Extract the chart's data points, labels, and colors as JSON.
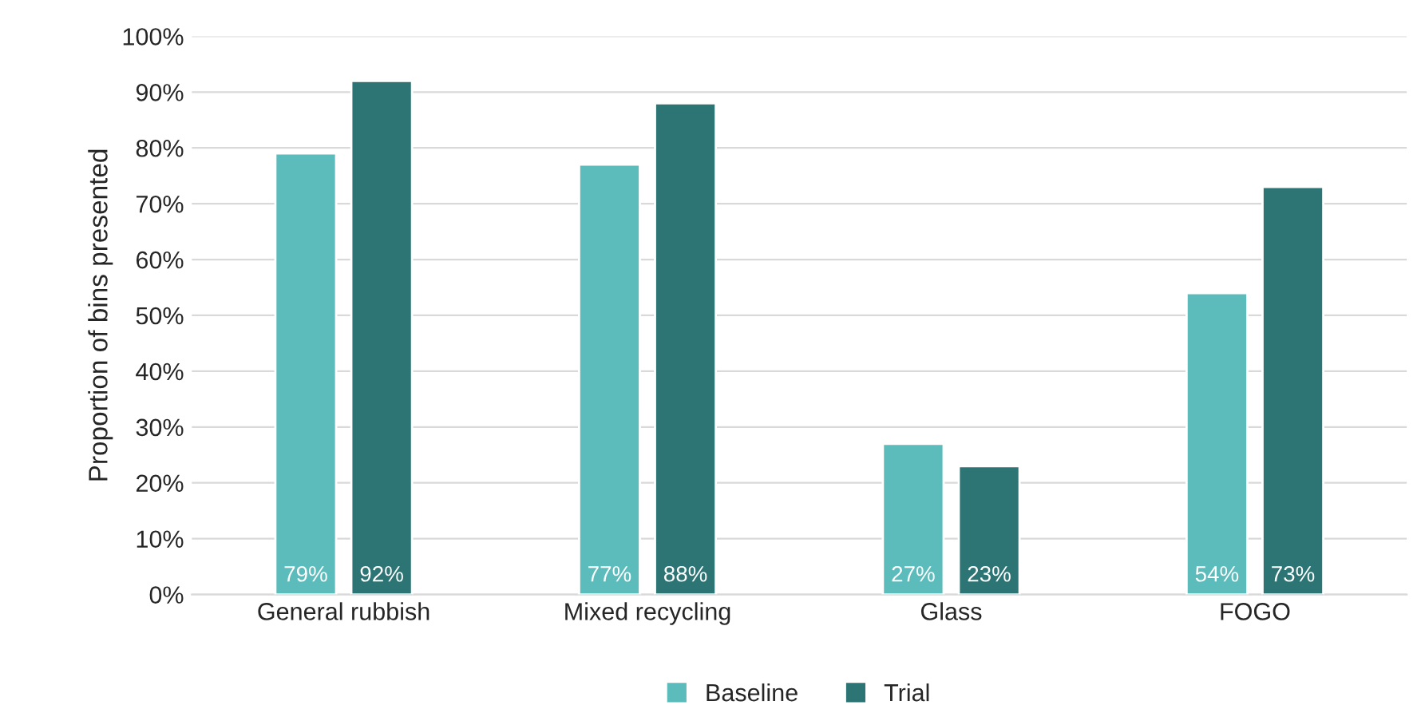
{
  "chart_data": {
    "type": "bar",
    "ylabel": "Proportion of bins presented",
    "categories": [
      "General rubbish",
      "Mixed recycling",
      "Glass",
      "FOGO"
    ],
    "series": [
      {
        "name": "Baseline",
        "color": "#5cbcbc",
        "values": [
          79,
          77,
          27,
          54
        ],
        "value_labels": [
          "79%",
          "77%",
          "27%",
          "54%"
        ]
      },
      {
        "name": "Trial",
        "color": "#2d7474",
        "values": [
          92,
          88,
          23,
          73
        ],
        "value_labels": [
          "92%",
          "88%",
          "23%",
          "73%"
        ]
      }
    ],
    "ylim": [
      0,
      100
    ],
    "yticks": [
      {
        "value": 0,
        "label": "0%"
      },
      {
        "value": 10,
        "label": "10%"
      },
      {
        "value": 20,
        "label": "20%"
      },
      {
        "value": 30,
        "label": "30%"
      },
      {
        "value": 40,
        "label": "40%"
      },
      {
        "value": 50,
        "label": "50%"
      },
      {
        "value": 60,
        "label": "60%"
      },
      {
        "value": 70,
        "label": "70%"
      },
      {
        "value": 80,
        "label": "80%"
      },
      {
        "value": 90,
        "label": "90%"
      },
      {
        "value": 100,
        "label": "100%"
      }
    ],
    "grid": "y",
    "legend": "bottom"
  }
}
